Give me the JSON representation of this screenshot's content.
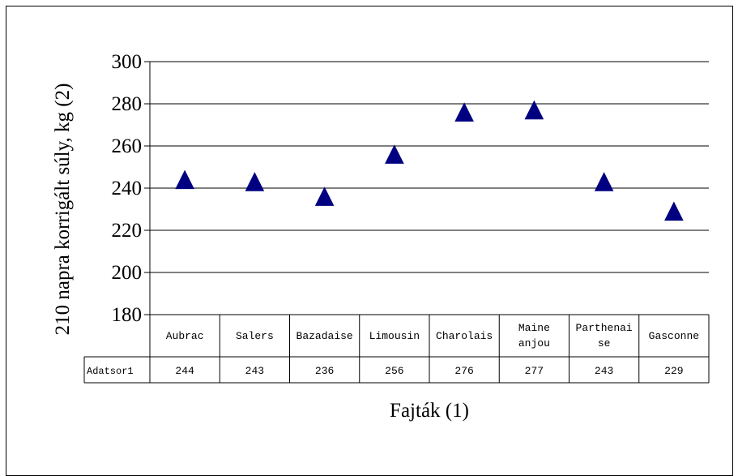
{
  "chart_data": {
    "type": "scatter",
    "marker": "triangle",
    "marker_color": "#000080",
    "categories": [
      "Aubrac",
      "Salers",
      "Bazadaise",
      "Limousin",
      "Charolais",
      "Maine anjou",
      "Parthenaise",
      "Gasconne"
    ],
    "category_lines": [
      [
        "Aubrac"
      ],
      [
        "Salers"
      ],
      [
        "Bazadaise"
      ],
      [
        "Limousin"
      ],
      [
        "Charolais"
      ],
      [
        "Maine",
        "anjou"
      ],
      [
        "Parthenai",
        "se"
      ],
      [
        "Gasconne"
      ]
    ],
    "series": [
      {
        "name": "Adatsor1",
        "values": [
          244,
          243,
          236,
          256,
          276,
          277,
          243,
          229
        ]
      }
    ],
    "ylabel": "210 napra korrigált súly, kg (2)",
    "xlabel": "Fajták (1)",
    "ylim": [
      180,
      300
    ],
    "yticks": [
      180,
      200,
      220,
      240,
      260,
      280,
      300
    ],
    "grid": true,
    "data_table": true
  }
}
